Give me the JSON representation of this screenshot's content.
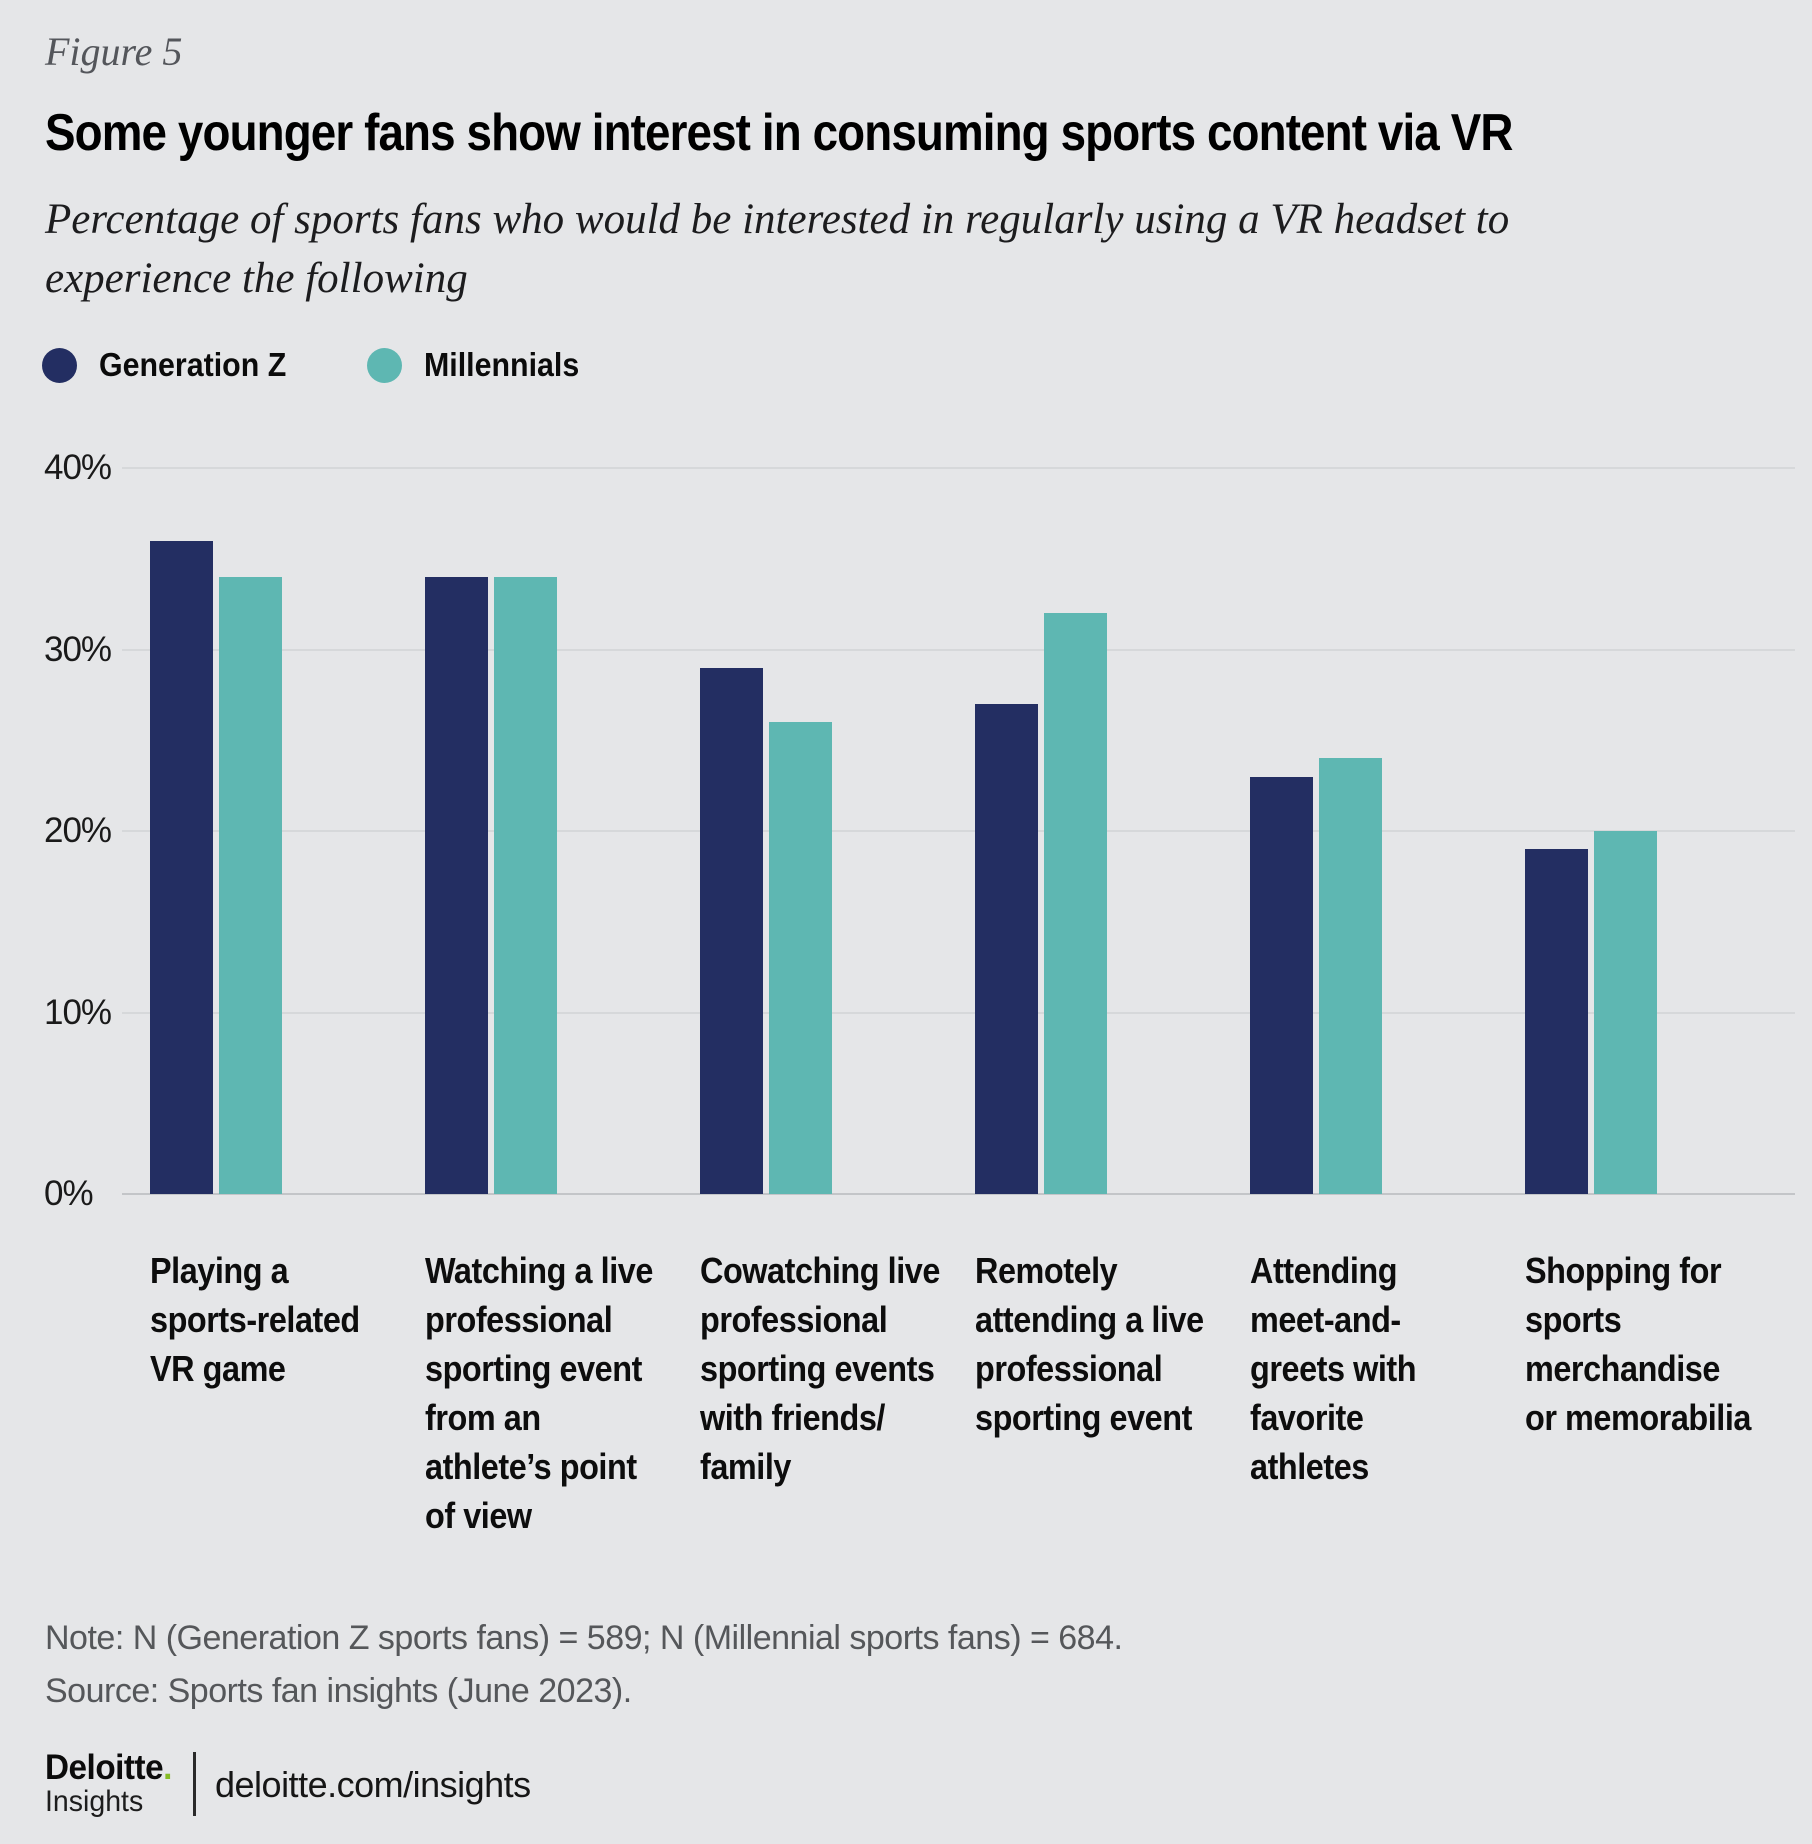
{
  "figure_label": "Figure 5",
  "title": "Some younger fans show interest in consuming sports content via VR",
  "subtitle": "Percentage of sports fans who would be interested in regularly using a VR headset to\nexperience the following",
  "legend": [
    {
      "label": "Generation Z",
      "color": "#232e62"
    },
    {
      "label": "Millennials",
      "color": "#5eb7b2"
    }
  ],
  "chart_data": {
    "type": "bar",
    "categories": [
      "Playing a\nsports-related\nVR game",
      "Watching a live\nprofessional\nsporting event\nfrom an\nathlete’s point\nof view",
      "Cowatching live\nprofessional\nsporting events\nwith friends/\nfamily",
      "Remotely\nattending a live\nprofessional\nsporting event",
      "Attending\nmeet-and-\ngreets with\nfavorite\nathletes",
      "Shopping for\nsports\nmerchandise\nor memorabilia"
    ],
    "series": [
      {
        "name": "Generation Z",
        "color": "#232e62",
        "values": [
          36,
          34,
          29,
          27,
          23,
          19
        ]
      },
      {
        "name": "Millennials",
        "color": "#5eb7b2",
        "values": [
          34,
          34,
          26,
          32,
          24,
          20
        ]
      }
    ],
    "title": "Some younger fans show interest in consuming sports content via VR",
    "xlabel": "",
    "ylabel": "",
    "ylim": [
      0,
      40
    ],
    "y_ticks": [
      "40%",
      "30%",
      "20%",
      "10%",
      "0%"
    ],
    "grid": true,
    "legend_position": "top-left",
    "background": "#e5e6e8",
    "gridline_color": "#d6d8da",
    "axisline_color": "#c3c5c8"
  },
  "note": "Note: N (Generation Z sports fans) = 589; N (Millennial sports fans) = 684.",
  "source": "Source: Sports fan insights (June 2023).",
  "footer": {
    "brand": "Deloitte",
    "brand_dot": ".",
    "brand_sub": "Insights",
    "link": "deloitte.com/insights",
    "accent_green": "#86bc25"
  }
}
